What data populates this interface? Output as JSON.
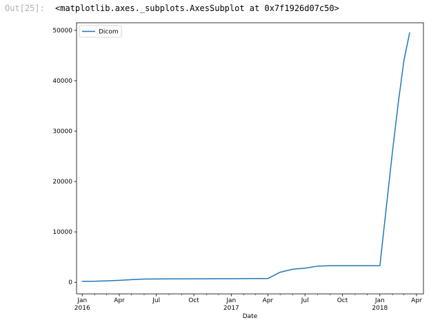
{
  "cell": {
    "prompt": "Out[25]:",
    "repr": "<matplotlib.axes._subplots.AxesSubplot at 0x7f1926d07c50>"
  },
  "colors": {
    "line": "#1f77b4",
    "axes": "#000000",
    "legend_border": "#cccccc",
    "prompt": "#b0b0b0"
  },
  "chart_data": {
    "type": "line",
    "title": "",
    "xlabel": "Date",
    "ylabel": "",
    "grid": false,
    "legend": "top-left",
    "series": [
      {
        "name": "Dicom",
        "x": [
          "2016-01-01",
          "2016-02-01",
          "2016-03-01",
          "2016-04-01",
          "2016-05-01",
          "2016-06-01",
          "2016-07-01",
          "2016-08-01",
          "2016-09-01",
          "2016-10-01",
          "2016-11-01",
          "2016-12-01",
          "2017-01-01",
          "2017-02-01",
          "2017-03-01",
          "2017-04-01",
          "2017-05-01",
          "2017-06-01",
          "2017-07-01",
          "2017-08-01",
          "2017-09-01",
          "2017-10-01",
          "2017-11-01",
          "2017-12-01",
          "2018-01-01",
          "2018-02-01",
          "2018-02-15",
          "2018-03-01",
          "2018-03-15"
        ],
        "y": [
          200,
          210,
          280,
          380,
          520,
          650,
          660,
          670,
          680,
          690,
          700,
          710,
          720,
          730,
          740,
          760,
          2000,
          2600,
          2800,
          3200,
          3300,
          3300,
          3300,
          3300,
          3300,
          26000,
          35500,
          44000,
          49500
        ]
      }
    ],
    "ylim": [
      -2300,
      51500
    ],
    "xlim": [
      "2015-12-18",
      "2018-04-18"
    ],
    "yticks": [
      0,
      10000,
      20000,
      30000,
      40000,
      50000
    ],
    "xticks": [
      {
        "date": "2016-01-01",
        "label": "Jan",
        "sublabel": "2016"
      },
      {
        "date": "2016-04-01",
        "label": "Apr",
        "sublabel": ""
      },
      {
        "date": "2016-07-01",
        "label": "Jul",
        "sublabel": ""
      },
      {
        "date": "2016-10-01",
        "label": "Oct",
        "sublabel": ""
      },
      {
        "date": "2017-01-01",
        "label": "Jan",
        "sublabel": "2017"
      },
      {
        "date": "2017-04-01",
        "label": "Apr",
        "sublabel": ""
      },
      {
        "date": "2017-07-01",
        "label": "Jul",
        "sublabel": ""
      },
      {
        "date": "2017-10-01",
        "label": "Oct",
        "sublabel": ""
      },
      {
        "date": "2018-01-01",
        "label": "Jan",
        "sublabel": "2018"
      },
      {
        "date": "2018-04-01",
        "label": "Apr",
        "sublabel": ""
      }
    ]
  }
}
